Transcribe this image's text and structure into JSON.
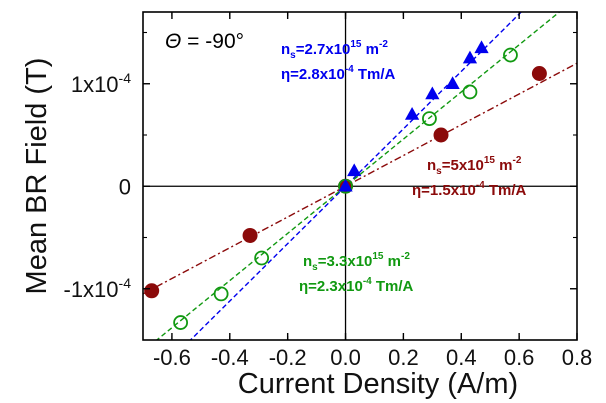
{
  "chart_data": {
    "type": "scatter",
    "title": "",
    "xlabel": "Current Density (A/m)",
    "ylabel": "Mean BR Field (T)",
    "xlim": [
      -0.7,
      0.8
    ],
    "ylim": [
      -0.00015,
      0.00017
    ],
    "grid": false,
    "legend": "none",
    "x_ticks": [
      -0.6,
      -0.4,
      -0.2,
      0.0,
      0.2,
      0.4,
      0.6,
      0.8
    ],
    "x_tick_labels": [
      "-0.6",
      "-0.4",
      "-0.2",
      "0.0",
      "0.2",
      "0.4",
      "0.6",
      "0.8"
    ],
    "y_ticks": [
      -0.0001,
      0,
      0.0001
    ],
    "y_tick_labels": [
      "-1x10-4",
      "0",
      "1x10-4"
    ],
    "reference_lines": {
      "x": 0,
      "y": 0
    },
    "theta_label": {
      "symbol": "Θ",
      "text": " = -90°"
    },
    "series": [
      {
        "marker": "triangle-filled",
        "color": "#0000ee",
        "line_style": "dashed",
        "fit_slope": 0.00028,
        "points": [
          {
            "x": 0.0,
            "y": 0.0
          },
          {
            "x": 0.03,
            "y": 1.5e-05
          },
          {
            "x": 0.23,
            "y": 7e-05
          },
          {
            "x": 0.3,
            "y": 9e-05
          },
          {
            "x": 0.37,
            "y": 0.0001
          },
          {
            "x": 0.43,
            "y": 0.000125
          },
          {
            "x": 0.47,
            "y": 0.000135
          }
        ],
        "annotation": {
          "line1_prefix": "n",
          "line1_sub": "s",
          "line1_main": "=2.7x10",
          "line1_sup": "15",
          "line1_unit": " m",
          "line1_unit_sup": "-2",
          "line2_prefix": "η=2.8x10",
          "line2_sup": "-4",
          "line2_unit": " Tm/A"
        }
      },
      {
        "marker": "circle-open",
        "color": "#119911",
        "line_style": "dashed",
        "fit_slope": 0.00023,
        "points": [
          {
            "x": -0.57,
            "y": -0.000133
          },
          {
            "x": -0.43,
            "y": -0.000105
          },
          {
            "x": -0.29,
            "y": -7e-05
          },
          {
            "x": 0.0,
            "y": 0.0
          },
          {
            "x": 0.29,
            "y": 6.6e-05
          },
          {
            "x": 0.43,
            "y": 9.2e-05
          },
          {
            "x": 0.57,
            "y": 0.000128
          }
        ],
        "annotation": {
          "line1_prefix": "n",
          "line1_sub": "s",
          "line1_main": "=3.3x10",
          "line1_sup": "15",
          "line1_unit": " m",
          "line1_unit_sup": "-2",
          "line2_prefix": "η=2.3x10",
          "line2_sup": "-4",
          "line2_unit": " Tm/A"
        }
      },
      {
        "marker": "circle-filled",
        "color": "#8b0a0a",
        "line_style": "dashdot",
        "fit_slope": 0.00015,
        "points": [
          {
            "x": -0.67,
            "y": -0.000102
          },
          {
            "x": -0.33,
            "y": -4.8e-05
          },
          {
            "x": 0.0,
            "y": 0.0
          },
          {
            "x": 0.33,
            "y": 5e-05
          },
          {
            "x": 0.67,
            "y": 0.00011
          }
        ],
        "annotation": {
          "line1_prefix": "n",
          "line1_sub": "s",
          "line1_main": "=5x10",
          "line1_sup": "15",
          "line1_unit": " m",
          "line1_unit_sup": "-2",
          "line2_prefix": "η=1.5x10",
          "line2_sup": "-4",
          "line2_unit": " Tm/A"
        }
      }
    ]
  }
}
